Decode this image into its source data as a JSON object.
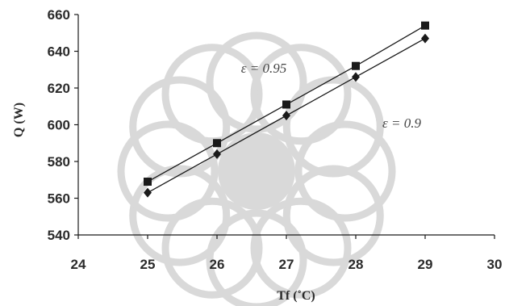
{
  "chart_data": {
    "type": "line",
    "title": "",
    "xlabel": "Tf (˚C)",
    "ylabel": "Q (W)",
    "xlim": [
      24,
      30
    ],
    "ylim": [
      540,
      660
    ],
    "x_ticks": [
      "24",
      "25",
      "26",
      "27",
      "28",
      "29",
      "30"
    ],
    "y_ticks": [
      "540",
      "560",
      "580",
      "600",
      "620",
      "640",
      "660"
    ],
    "x": [
      25,
      26,
      27,
      28,
      29
    ],
    "series": [
      {
        "name": "ε = 0.95",
        "marker": "square",
        "values": [
          569,
          590,
          611,
          632,
          654
        ],
        "color": "#1a1a1a"
      },
      {
        "name": "ε = 0.9",
        "marker": "diamond",
        "values": [
          563,
          584,
          605,
          626,
          647
        ],
        "color": "#1a1a1a"
      }
    ],
    "grid": false,
    "legend": "inline labels"
  },
  "colors": {
    "watermark": "#d9d9d9",
    "axis": "#1a1a1a"
  }
}
